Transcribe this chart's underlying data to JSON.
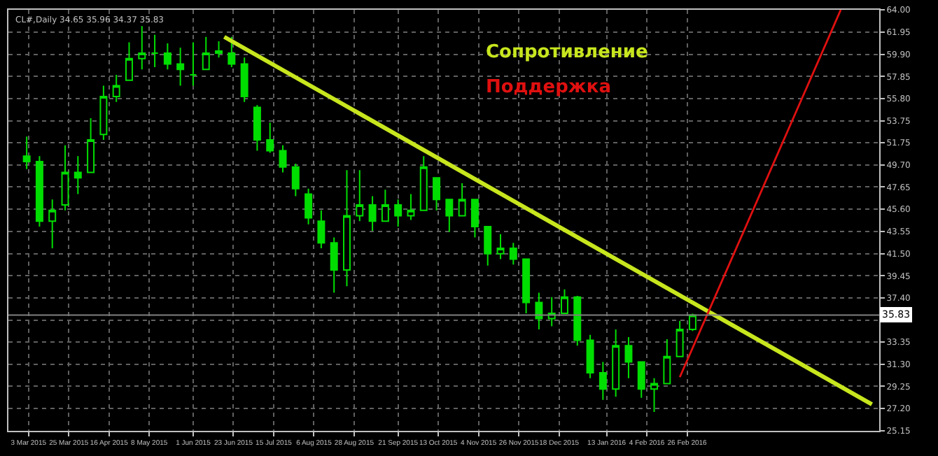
{
  "chart_data": {
    "type": "candlestick",
    "annotations": [
      "CL#,Daily 34.65 35.96 34.37 35.83"
    ],
    "xlim": [
      "2015-02-20",
      "2016-06-10"
    ],
    "xticks": [
      {
        "value": "2015-03-03",
        "label": "3 Mar 2015"
      },
      {
        "value": "2015-03-25",
        "label": "25 Mar 2015"
      },
      {
        "value": "2015-04-16",
        "label": "16 Apr 2015"
      },
      {
        "value": "2015-05-08",
        "label": "8 May 2015"
      },
      {
        "value": "2015-06-01",
        "label": "1 Jun 2015"
      },
      {
        "value": "2015-06-23",
        "label": "23 Jun 2015"
      },
      {
        "value": "2015-07-15",
        "label": "15 Jul 2015"
      },
      {
        "value": "2015-08-06",
        "label": "6 Aug 2015"
      },
      {
        "value": "2015-08-28",
        "label": "28 Aug 2015"
      },
      {
        "value": "2015-09-21",
        "label": "21 Sep 2015"
      },
      {
        "value": "2015-10-13",
        "label": "13 Oct 2015"
      },
      {
        "value": "2015-11-04",
        "label": "4 Nov 2015"
      },
      {
        "value": "2015-11-26",
        "label": "26 Nov 2015"
      },
      {
        "value": "2015-12-18",
        "label": "18 Dec 2015"
      },
      {
        "value": "2016-01-13",
        "label": "13 Jan 2016"
      },
      {
        "value": "2016-02-04",
        "label": "4 Feb 2016"
      },
      {
        "value": "2016-02-26",
        "label": "26 Feb 2016"
      }
    ],
    "ylim": [
      25.15,
      64.0
    ],
    "yticks": [
      {
        "value": 25.15,
        "label": "25.15"
      },
      {
        "value": 27.2,
        "label": "27.20"
      },
      {
        "value": 29.25,
        "label": "29.25"
      },
      {
        "value": 31.3,
        "label": "31.30"
      },
      {
        "value": 33.35,
        "label": "33.35"
      },
      {
        "value": 35.35,
        "label": null
      },
      {
        "value": 37.4,
        "label": "37.40"
      },
      {
        "value": 39.45,
        "label": "39.45"
      },
      {
        "value": 41.5,
        "label": "41.50"
      },
      {
        "value": 43.55,
        "label": "43.55"
      },
      {
        "value": 45.6,
        "label": "45.60"
      },
      {
        "value": 47.65,
        "label": "47.65"
      },
      {
        "value": 49.7,
        "label": "49.70"
      },
      {
        "value": 51.75,
        "label": "51.75"
      },
      {
        "value": 53.75,
        "label": "53.75"
      },
      {
        "value": 55.8,
        "label": "55.80"
      },
      {
        "value": 57.85,
        "label": "57.85"
      },
      {
        "value": 59.9,
        "label": "59.90"
      },
      {
        "value": 61.95,
        "label": "61.95"
      },
      {
        "value": 64.0,
        "label": "64.00"
      }
    ],
    "grid": true,
    "legend": false,
    "ref_lines": [
      {
        "axis": "y",
        "value": 35.83,
        "label": "35.83",
        "color": "#808080"
      }
    ],
    "series": [
      {
        "type": "candlestick",
        "color": "#00dd00",
        "x": [
          "2015-03-02",
          "2015-03-09",
          "2015-03-16",
          "2015-03-23",
          "2015-03-30",
          "2015-04-06",
          "2015-04-13",
          "2015-04-20",
          "2015-04-27",
          "2015-05-04",
          "2015-05-11",
          "2015-05-18",
          "2015-05-25",
          "2015-06-01",
          "2015-06-08",
          "2015-06-15",
          "2015-06-22",
          "2015-06-29",
          "2015-07-06",
          "2015-07-13",
          "2015-07-20",
          "2015-07-27",
          "2015-08-03",
          "2015-08-10",
          "2015-08-17",
          "2015-08-24",
          "2015-08-31",
          "2015-09-07",
          "2015-09-14",
          "2015-09-21",
          "2015-09-28",
          "2015-10-05",
          "2015-10-12",
          "2015-10-19",
          "2015-10-26",
          "2015-11-02",
          "2015-11-09",
          "2015-11-16",
          "2015-11-23",
          "2015-11-30",
          "2015-12-07",
          "2015-12-14",
          "2015-12-21",
          "2015-12-28",
          "2016-01-04",
          "2016-01-11",
          "2016-01-18",
          "2016-01-25",
          "2016-02-01",
          "2016-02-08",
          "2016-02-15",
          "2016-02-22",
          "2016-02-29"
        ],
        "ohlc": [
          [
            50.5,
            52.3,
            49.3,
            50.0
          ],
          [
            50.0,
            50.5,
            44.0,
            44.5
          ],
          [
            44.5,
            46.5,
            42.0,
            45.5
          ],
          [
            46.0,
            51.5,
            45.5,
            49.0
          ],
          [
            49.0,
            50.5,
            47.0,
            48.5
          ],
          [
            49.0,
            54.0,
            49.0,
            52.0
          ],
          [
            52.5,
            57.0,
            52.0,
            56.0
          ],
          [
            56.0,
            58.0,
            55.5,
            57.0
          ],
          [
            57.5,
            61.0,
            57.5,
            59.5
          ],
          [
            59.5,
            62.5,
            58.5,
            60.0
          ],
          [
            60.0,
            61.7,
            58.7,
            60.0
          ],
          [
            60.0,
            60.9,
            58.5,
            59.0
          ],
          [
            59.0,
            60.5,
            57.0,
            58.5
          ],
          [
            58.0,
            61.0,
            57.0,
            58.0
          ],
          [
            58.5,
            61.5,
            58.5,
            60.0
          ],
          [
            60.0,
            61.1,
            59.6,
            60.2
          ],
          [
            60.0,
            61.5,
            58.7,
            59.0
          ],
          [
            59.0,
            59.6,
            55.5,
            56.0
          ],
          [
            55.0,
            55.2,
            51.0,
            52.0
          ],
          [
            52.0,
            53.6,
            50.8,
            51.0
          ],
          [
            51.0,
            51.5,
            49.0,
            49.5
          ],
          [
            49.5,
            49.8,
            46.8,
            47.5
          ],
          [
            47.0,
            47.5,
            44.2,
            44.8
          ],
          [
            44.5,
            45.5,
            42.0,
            42.5
          ],
          [
            42.5,
            43.0,
            37.9,
            40.0
          ],
          [
            40.0,
            49.2,
            38.5,
            45.0
          ],
          [
            45.0,
            49.2,
            44.5,
            46.0
          ],
          [
            46.0,
            46.8,
            43.6,
            44.5
          ],
          [
            44.5,
            47.4,
            44.5,
            46.0
          ],
          [
            46.0,
            46.5,
            44.0,
            45.0
          ],
          [
            45.0,
            47.0,
            44.6,
            45.5
          ],
          [
            45.5,
            50.5,
            45.5,
            49.5
          ],
          [
            48.5,
            48.5,
            45.5,
            46.5
          ],
          [
            46.5,
            46.5,
            43.5,
            45.0
          ],
          [
            45.0,
            48.0,
            45.0,
            46.5
          ],
          [
            46.5,
            46.5,
            43.0,
            44.0
          ],
          [
            44.0,
            44.0,
            40.4,
            41.5
          ],
          [
            41.5,
            43.3,
            41.0,
            42.0
          ],
          [
            42.0,
            42.5,
            40.5,
            41.0
          ],
          [
            41.0,
            41.0,
            36.0,
            37.0
          ],
          [
            37.0,
            37.9,
            34.5,
            35.5
          ],
          [
            35.5,
            37.5,
            34.8,
            36.0
          ],
          [
            36.0,
            38.2,
            36.0,
            37.5
          ],
          [
            37.5,
            37.6,
            33.0,
            33.5
          ],
          [
            33.5,
            34.0,
            30.0,
            30.5
          ],
          [
            30.5,
            31.5,
            28.0,
            29.0
          ],
          [
            29.0,
            34.5,
            28.3,
            33.0
          ],
          [
            33.0,
            33.8,
            30.0,
            31.5
          ],
          [
            31.5,
            31.5,
            28.2,
            29.0
          ],
          [
            29.0,
            30.0,
            26.9,
            29.5
          ],
          [
            29.5,
            33.6,
            29.5,
            32.0
          ],
          [
            32.0,
            35.3,
            32.0,
            34.5
          ],
          [
            34.5,
            35.96,
            34.37,
            35.83
          ]
        ]
      },
      {
        "type": "line",
        "name": "Сопротивление",
        "color": "#c8e61e",
        "x": [
          "2015-06-18",
          "2016-06-06"
        ],
        "values": [
          61.5,
          27.6
        ]
      },
      {
        "type": "line",
        "name": "Поддержка",
        "color": "#e01010",
        "x": [
          "2016-02-22",
          "2016-05-20"
        ],
        "values": [
          30.1,
          64.0
        ]
      }
    ]
  }
}
